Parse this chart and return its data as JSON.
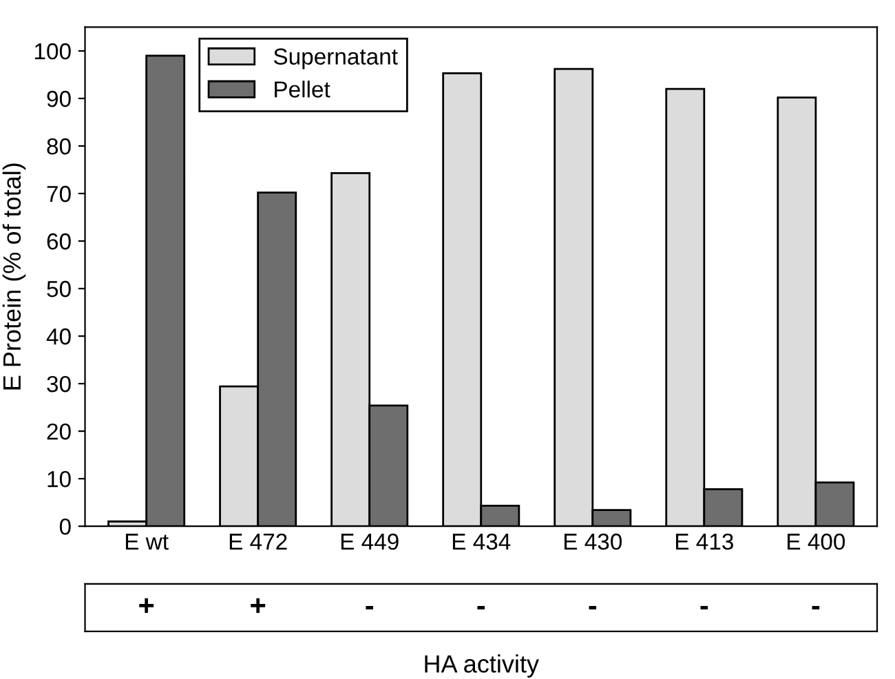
{
  "chart_data": {
    "type": "bar",
    "ylabel": "E Protein (% of total)",
    "xlabel": "HA activity",
    "categories": [
      "E wt",
      "E 472",
      "E 449",
      "E 434",
      "E 430",
      "E 413",
      "E 400"
    ],
    "series": [
      {
        "name": "Supernatant",
        "color": "#dcdcdc",
        "values": [
          1,
          29.4,
          74.3,
          95.3,
          96.2,
          92,
          90.2
        ]
      },
      {
        "name": "Pellet",
        "color": "#6e6e6e",
        "values": [
          99,
          70.2,
          25.4,
          4.3,
          3.4,
          7.8,
          9.2
        ]
      }
    ],
    "ylim": [
      0,
      105
    ],
    "yticks": [
      0,
      10,
      20,
      30,
      40,
      50,
      60,
      70,
      80,
      90,
      100
    ],
    "legend": "top left",
    "grid": false,
    "annotations": [
      "+",
      "+",
      "-",
      "-",
      "-",
      "-",
      "-"
    ]
  }
}
